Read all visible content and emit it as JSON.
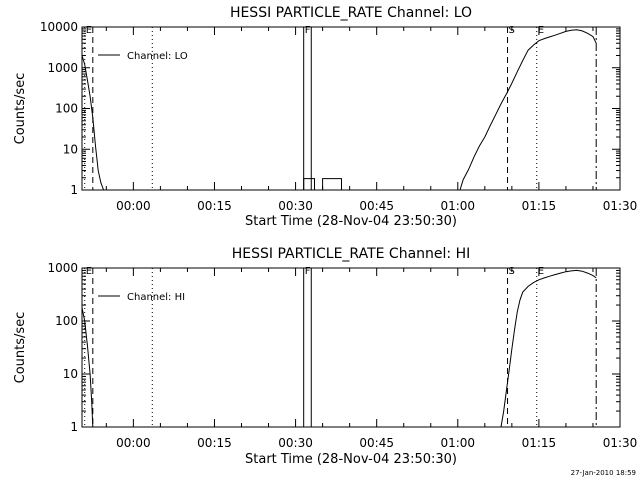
{
  "footer": {
    "timestamp": "27-Jan-2010 18:59"
  },
  "chart_data": [
    {
      "type": "line",
      "title": "HESSI PARTICLE_RATE Channel: LO",
      "xlabel": "Start Time (28-Nov-04 23:50:30)",
      "ylabel": "Counts/sec",
      "y_scale": "log",
      "xlim": [
        -9.5,
        90
      ],
      "ylim": [
        1,
        10000
      ],
      "x_unit": "minutes relative to 00:00",
      "x_tick_labels": [
        "00:00",
        "00:15",
        "00:30",
        "00:45",
        "01:00",
        "01:15",
        "01:30"
      ],
      "x_tick_values": [
        0,
        15,
        30,
        45,
        60,
        75,
        90
      ],
      "y_tick_labels": [
        "1",
        "10",
        "100",
        "1000",
        "10000"
      ],
      "y_tick_values": [
        1,
        10,
        100,
        1000,
        10000
      ],
      "legend": {
        "entries": [
          "Channel: LO"
        ],
        "placement": "top-left"
      },
      "markers": [
        {
          "label": "E",
          "x": -9.0,
          "style": "dotted"
        },
        {
          "label": "",
          "x": -7.5,
          "style": "dashed"
        },
        {
          "label": "",
          "x": 3.5,
          "style": "dotted"
        },
        {
          "label": "F",
          "x": 31.5,
          "style": "solid"
        },
        {
          "label": "",
          "x": 32.9,
          "style": "solid"
        },
        {
          "label": "S",
          "x": 69.2,
          "style": "dashed"
        },
        {
          "label": "E",
          "x": 74.6,
          "style": "dotted"
        },
        {
          "label": "",
          "x": 85.6,
          "style": "dashdot"
        }
      ],
      "series": [
        {
          "points": [
            [
              -9.5,
              2000
            ],
            [
              -9.0,
              1200
            ],
            [
              -8.5,
              500
            ],
            [
              -8.0,
              200
            ],
            [
              -7.5,
              60
            ],
            [
              -7.0,
              12
            ],
            [
              -6.5,
              3
            ],
            [
              -6.0,
              1.5
            ],
            [
              -5.5,
              1
            ],
            [
              31.5,
              1
            ],
            [
              31.5,
              1.9
            ],
            [
              33.5,
              1.9
            ],
            [
              33.5,
              1
            ],
            [
              35.0,
              1
            ],
            [
              35.0,
              1.9
            ],
            [
              38.5,
              1.9
            ],
            [
              38.5,
              1
            ],
            [
              60.4,
              1
            ],
            [
              61,
              1.8
            ],
            [
              62,
              3.2
            ],
            [
              63,
              6.5
            ],
            [
              64,
              12
            ],
            [
              65,
              20
            ],
            [
              66,
              38
            ],
            [
              67,
              70
            ],
            [
              68,
              130
            ],
            [
              69,
              230
            ],
            [
              70,
              420
            ],
            [
              71,
              800
            ],
            [
              72,
              1500
            ],
            [
              73,
              2700
            ],
            [
              74,
              3600
            ],
            [
              75,
              4600
            ],
            [
              76,
              5200
            ],
            [
              77,
              5700
            ],
            [
              78,
              6300
            ],
            [
              79,
              7000
            ],
            [
              80,
              7800
            ],
            [
              81,
              8300
            ],
            [
              82,
              8600
            ],
            [
              83,
              8000
            ],
            [
              84,
              7000
            ],
            [
              85,
              5800
            ],
            [
              85.6,
              4000
            ]
          ]
        }
      ]
    },
    {
      "type": "line",
      "title": "HESSI PARTICLE_RATE Channel: HI",
      "xlabel": "Start Time (28-Nov-04 23:50:30)",
      "ylabel": "Counts/sec",
      "y_scale": "log",
      "xlim": [
        -9.5,
        90
      ],
      "ylim": [
        1,
        1000
      ],
      "x_unit": "minutes relative to 00:00",
      "x_tick_labels": [
        "00:00",
        "00:15",
        "00:30",
        "00:45",
        "01:00",
        "01:15",
        "01:30"
      ],
      "x_tick_values": [
        0,
        15,
        30,
        45,
        60,
        75,
        90
      ],
      "y_tick_labels": [
        "1",
        "10",
        "100",
        "1000"
      ],
      "y_tick_values": [
        1,
        10,
        100,
        1000
      ],
      "legend": {
        "entries": [
          "Channel: HI"
        ],
        "placement": "top-left"
      },
      "markers": [
        {
          "label": "E",
          "x": -9.0,
          "style": "dotted"
        },
        {
          "label": "",
          "x": -7.5,
          "style": "dashed"
        },
        {
          "label": "",
          "x": 3.5,
          "style": "dotted"
        },
        {
          "label": "F",
          "x": 31.5,
          "style": "solid"
        },
        {
          "label": "",
          "x": 32.9,
          "style": "solid"
        },
        {
          "label": "S",
          "x": 69.2,
          "style": "dashed"
        },
        {
          "label": "E",
          "x": 74.6,
          "style": "dotted"
        },
        {
          "label": "",
          "x": 85.6,
          "style": "dashdot"
        }
      ],
      "series": [
        {
          "points": [
            [
              -9.5,
              180
            ],
            [
              -9.0,
              100
            ],
            [
              -8.5,
              35
            ],
            [
              -8.0,
              10
            ],
            [
              -7.7,
              3
            ],
            [
              -7.5,
              1
            ],
            [
              68.0,
              1
            ],
            [
              68.5,
              2
            ],
            [
              69,
              5
            ],
            [
              69.5,
              12
            ],
            [
              70,
              30
            ],
            [
              70.5,
              70
            ],
            [
              71,
              150
            ],
            [
              71.5,
              250
            ],
            [
              72,
              350
            ],
            [
              73,
              450
            ],
            [
              74,
              530
            ],
            [
              75,
              600
            ],
            [
              76,
              650
            ],
            [
              77,
              700
            ],
            [
              78,
              750
            ],
            [
              79,
              800
            ],
            [
              80,
              850
            ],
            [
              81,
              880
            ],
            [
              82,
              900
            ],
            [
              83,
              870
            ],
            [
              84,
              800
            ],
            [
              85,
              720
            ],
            [
              85.6,
              650
            ]
          ]
        }
      ]
    }
  ]
}
